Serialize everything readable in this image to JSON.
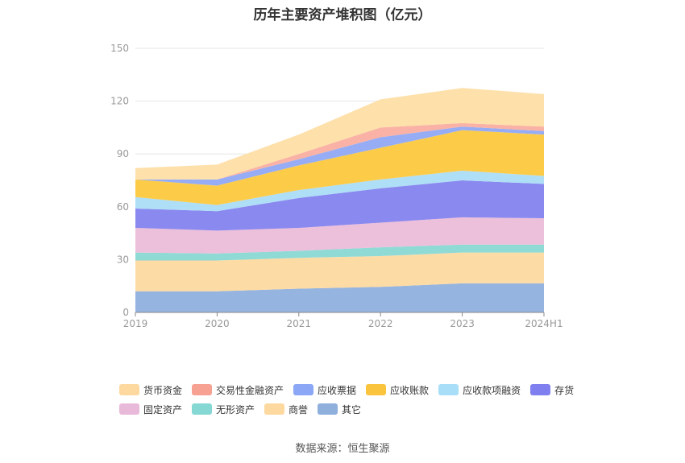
{
  "chart_data": {
    "type": "area",
    "stacked": true,
    "title": "历年主要资产堆积图（亿元）",
    "categories": [
      "2019",
      "2020",
      "2021",
      "2022",
      "2023",
      "2024H1"
    ],
    "ylim": [
      0,
      150
    ],
    "yticks": [
      0,
      30,
      60,
      90,
      120,
      150
    ],
    "grid": true,
    "legend_position": "bottom",
    "series": [
      {
        "name": "其它",
        "color": "#8fb0dd",
        "values": [
          12,
          12,
          13.5,
          14.5,
          16.5,
          16.5
        ]
      },
      {
        "name": "商誉",
        "color": "#fdd9a0",
        "values": [
          17.5,
          17.5,
          17.5,
          17.5,
          17.5,
          17.5
        ]
      },
      {
        "name": "无形资产",
        "color": "#8ad8d4",
        "values": [
          4.5,
          4,
          4,
          5,
          4.5,
          4.5
        ]
      },
      {
        "name": "固定资产",
        "color": "#ebbcd9",
        "values": [
          14,
          13,
          13,
          14,
          15.5,
          15
        ]
      },
      {
        "name": "存货",
        "color": "#8483ee",
        "values": [
          11,
          11,
          17,
          19.5,
          21,
          19.5
        ]
      },
      {
        "name": "应收款项融资",
        "color": "#abdcf7",
        "values": [
          6.5,
          3.5,
          4.5,
          5,
          5.5,
          4.5
        ]
      },
      {
        "name": "应收账款",
        "color": "#fcc93f",
        "values": [
          10,
          11,
          14,
          18,
          23,
          23.5
        ]
      },
      {
        "name": "应收票据",
        "color": "#90a9f4",
        "values": [
          0,
          3.5,
          3.5,
          6,
          2,
          2
        ]
      },
      {
        "name": "交易性金融资产",
        "color": "#f9aea0",
        "values": [
          0,
          0,
          3,
          5.5,
          2,
          2.5
        ]
      },
      {
        "name": "货币资金",
        "color": "#fedea5",
        "values": [
          6.5,
          8.5,
          11,
          16,
          20,
          18.5
        ]
      }
    ],
    "legend": [
      {
        "name": "货币资金",
        "color": "#fdd9a0"
      },
      {
        "name": "交易性金融资产",
        "color": "#f7a193"
      },
      {
        "name": "应收票据",
        "color": "#8ba7f5"
      },
      {
        "name": "应收账款",
        "color": "#fbc43d"
      },
      {
        "name": "应收款项融资",
        "color": "#a8def8"
      },
      {
        "name": "存货",
        "color": "#7f7ff0"
      },
      {
        "name": "固定资产",
        "color": "#e9b9d9"
      },
      {
        "name": "无形资产",
        "color": "#86d8d4"
      },
      {
        "name": "商誉",
        "color": "#fdd9a0"
      },
      {
        "name": "其它",
        "color": "#8fb0dd"
      }
    ]
  },
  "source_text": "数据来源：恒生聚源"
}
